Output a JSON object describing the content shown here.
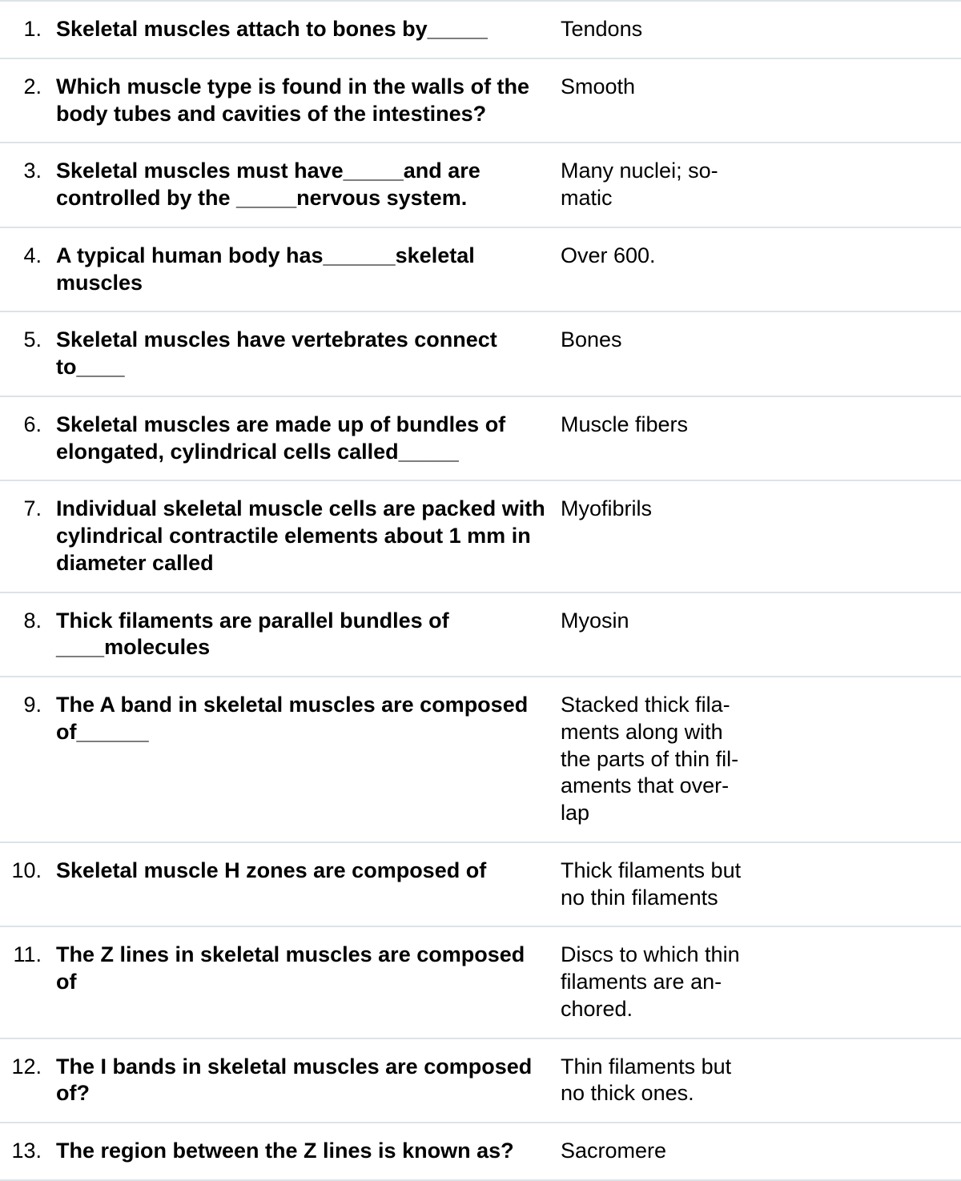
{
  "table": {
    "border_color": "#dce3e8",
    "text_color": "#000000",
    "background_color": "#ffffff",
    "number_fontsize": 27,
    "question_fontsize": 27,
    "answer_fontsize": 27,
    "question_fontweight": 700,
    "number_fontweight": 400,
    "answer_fontweight": 400,
    "question_col_width": 630,
    "answer_col_width": 240,
    "number_col_width": 70
  },
  "rows": [
    {
      "num": "1.",
      "question": "Skeletal muscles attach to bones by_____",
      "answer": "Tendons"
    },
    {
      "num": "2.",
      "question": "Which muscle type is found in the walls of the body tubes and cavities of the intestines?",
      "answer": "Smooth"
    },
    {
      "num": "3.",
      "question": "Skeletal muscles must have_____and are controlled by the _____nervous system.",
      "answer": "Many nuclei; so­matic"
    },
    {
      "num": "4.",
      "question": "A typical human body has______skeletal muscles",
      "answer": "Over 600."
    },
    {
      "num": "5.",
      "question": "Skeletal muscles have vertebrates connect to____",
      "answer": "Bones"
    },
    {
      "num": "6.",
      "question": "Skeletal muscles are made up of bundles of elongat­ed, cylindrical cells called_____",
      "answer": "Muscle fibers"
    },
    {
      "num": "7.",
      "question": "Individual skeletal muscle cells are packed with cylin­drical contractile elements about 1 mm in diameter called",
      "answer": "Myofibrils"
    },
    {
      "num": "8.",
      "question": "Thick filaments are parallel bundles of ____molecules",
      "answer": "Myosin"
    },
    {
      "num": "9.",
      "question": "The A band in skeletal muscles are composed of______",
      "answer": "Stacked thick fila­ments along with the parts of thin fil­aments that over­lap"
    },
    {
      "num": "10.",
      "question": "Skeletal muscle H zones are composed of",
      "answer": "Thick filaments but no thin fila­ments"
    },
    {
      "num": "11.",
      "question": "The Z lines in skeletal muscles are composed of",
      "answer": "Discs to which thin filaments are an­chored."
    },
    {
      "num": "12.",
      "question": "The I bands in skeletal muscles are composed of?",
      "answer": "Thin filaments but no thick ones."
    },
    {
      "num": "13.",
      "question": "The region between the Z lines is known as?",
      "answer": "Sacromere"
    }
  ]
}
